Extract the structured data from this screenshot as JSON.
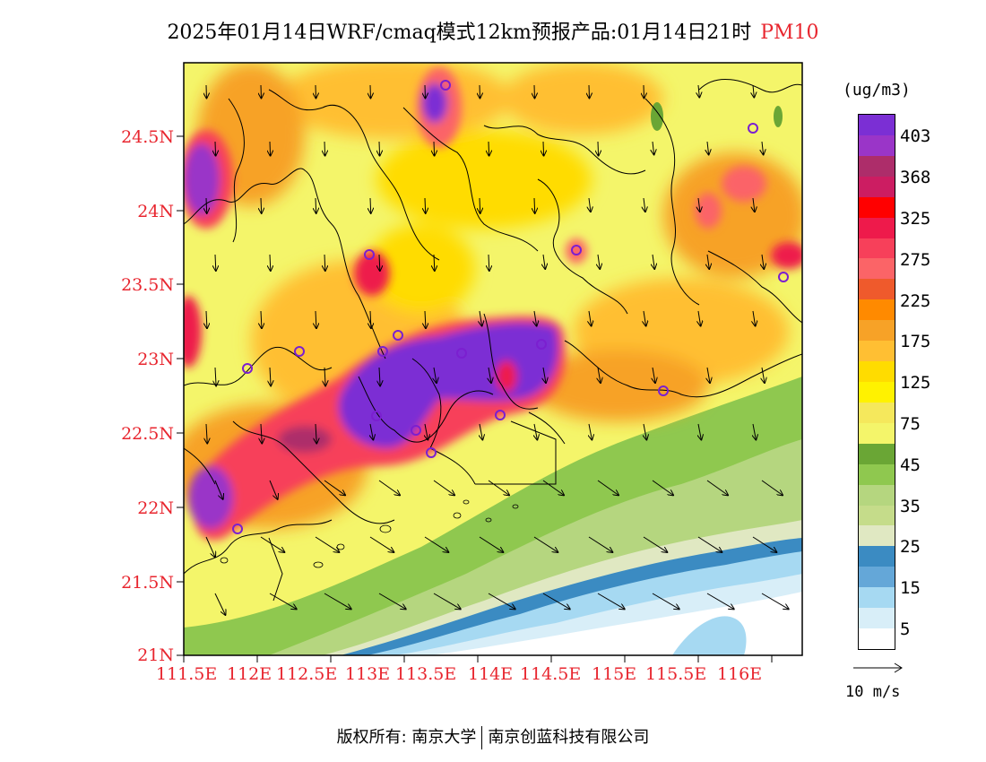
{
  "title": {
    "main": "2025年01月14日WRF/cmaq模式12km预报产品:01月14日21时",
    "variable": "PM10"
  },
  "axes": {
    "y_ticks": [
      "24.5N",
      "24N",
      "23.5N",
      "23N",
      "22.5N",
      "22N",
      "21.5N",
      "21N"
    ],
    "x_ticks": [
      "111.5E",
      "112E",
      "112.5E",
      "113E",
      "113.5E",
      "114E",
      "114.5E",
      "115E",
      "115.5E",
      "116E"
    ]
  },
  "colorbar": {
    "unit": "(ug/m3)",
    "labels": [
      "403",
      "368",
      "325",
      "275",
      "225",
      "175",
      "125",
      "75",
      "45",
      "35",
      "25",
      "15",
      "5"
    ],
    "colors": [
      "#7b2fd4",
      "#9a35c8",
      "#ad2d6a",
      "#cc1d62",
      "#ff0000",
      "#ee1a4b",
      "#f7405a",
      "#fb6467",
      "#ef5a2c",
      "#ff8a00",
      "#f7a227",
      "#ffbf33",
      "#ffdc00",
      "#fff200",
      "#f5e85c",
      "#f4f56a",
      "#6aa635",
      "#8fc84f",
      "#b5d67f",
      "#c5dc8a",
      "#e0e8c2",
      "#3b8bc2",
      "#64a7d8",
      "#a6d9f2",
      "#d8eef8",
      "#ffffff"
    ]
  },
  "reference_vector": {
    "label": "10 m/s"
  },
  "copyright": {
    "left": "版权所有: 南京大学",
    "right": "南京创蓝科技有限公司"
  }
}
